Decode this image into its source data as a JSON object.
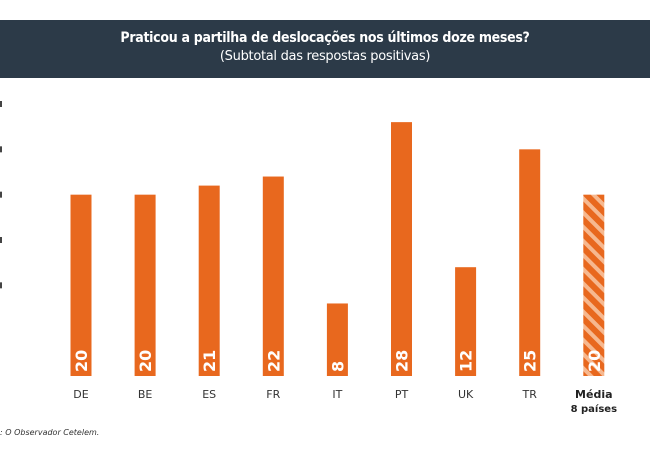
{
  "chart_data": {
    "type": "bar",
    "title": "Praticou a partilha de deslocações nos últimos doze meses?",
    "subtitle": "(Subtotal das respostas positivas)",
    "categories": [
      "DE",
      "BE",
      "ES",
      "FR",
      "IT",
      "PT",
      "UK",
      "TR",
      "Média|8 países"
    ],
    "values": [
      20,
      20,
      21,
      22,
      8,
      28,
      12,
      25,
      20
    ],
    "highlight": {
      "index": 8,
      "style": "hatched"
    },
    "ylim": [
      0,
      30
    ],
    "grid": false,
    "bar_color": "#e8681e",
    "label_color": "#ffffff"
  },
  "source": ": O Observador Cetelem."
}
